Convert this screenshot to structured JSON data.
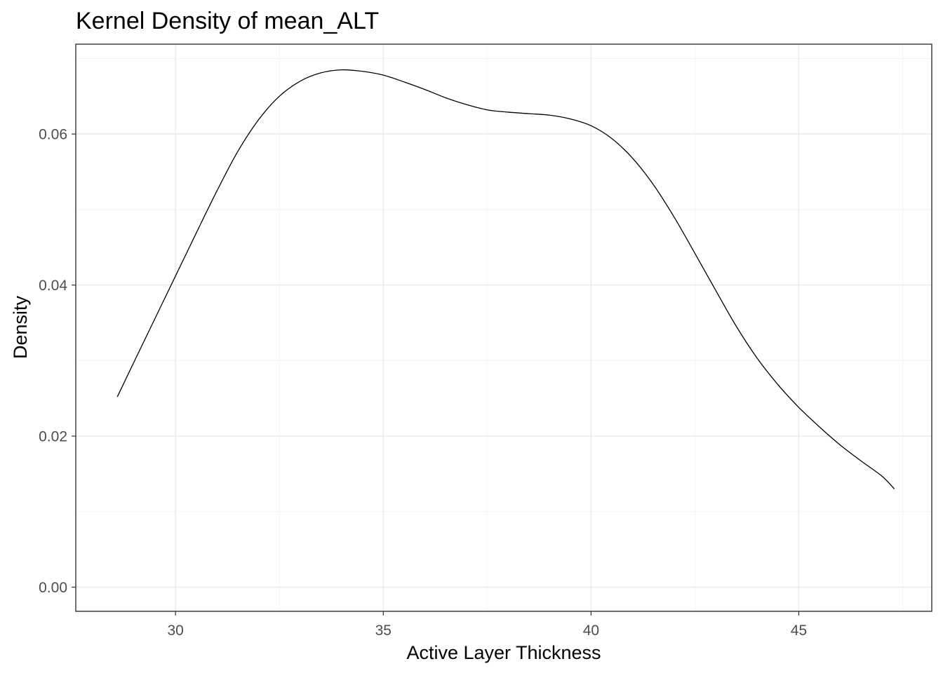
{
  "chart_data": {
    "type": "line",
    "title": "Kernel Density of mean_ALT",
    "xlabel": "Active Layer Thickness",
    "ylabel": "Density",
    "xlim": [
      27.6,
      48.2
    ],
    "ylim": [
      -0.0032,
      0.0719
    ],
    "x_ticks": [
      30,
      35,
      40,
      45
    ],
    "x_tick_labels": [
      "30",
      "35",
      "40",
      "45"
    ],
    "x_minor_ticks": [
      27.5,
      32.5,
      37.5,
      42.5,
      47.5
    ],
    "y_ticks": [
      0,
      0.02,
      0.04,
      0.06
    ],
    "y_tick_labels": [
      "0.00",
      "0.02",
      "0.04",
      "0.06"
    ],
    "y_minor_ticks": [
      0.01,
      0.03,
      0.05,
      0.07
    ],
    "grid": true,
    "legend": "none",
    "line_color": "#000000",
    "series": [
      {
        "x": [
          28.6,
          29.0,
          29.5,
          30.0,
          30.5,
          31.0,
          31.5,
          32.0,
          32.5,
          33.0,
          33.5,
          34.0,
          34.5,
          35.0,
          35.5,
          36.0,
          36.5,
          37.0,
          37.5,
          38.0,
          38.5,
          39.0,
          39.5,
          40.0,
          40.5,
          41.0,
          41.5,
          42.0,
          42.5,
          43.0,
          43.5,
          44.0,
          44.5,
          45.0,
          45.5,
          46.0,
          46.5,
          47.0,
          47.3
        ],
        "y": [
          0.0252,
          0.0298,
          0.0355,
          0.0412,
          0.0469,
          0.0525,
          0.0577,
          0.0619,
          0.065,
          0.067,
          0.0681,
          0.0685,
          0.0683,
          0.0678,
          0.0669,
          0.0659,
          0.0648,
          0.0639,
          0.0632,
          0.0629,
          0.0627,
          0.0625,
          0.062,
          0.0611,
          0.0594,
          0.0568,
          0.0533,
          0.049,
          0.0442,
          0.0393,
          0.0345,
          0.0303,
          0.0268,
          0.0238,
          0.0212,
          0.0188,
          0.0167,
          0.0147,
          0.013
        ]
      }
    ]
  }
}
